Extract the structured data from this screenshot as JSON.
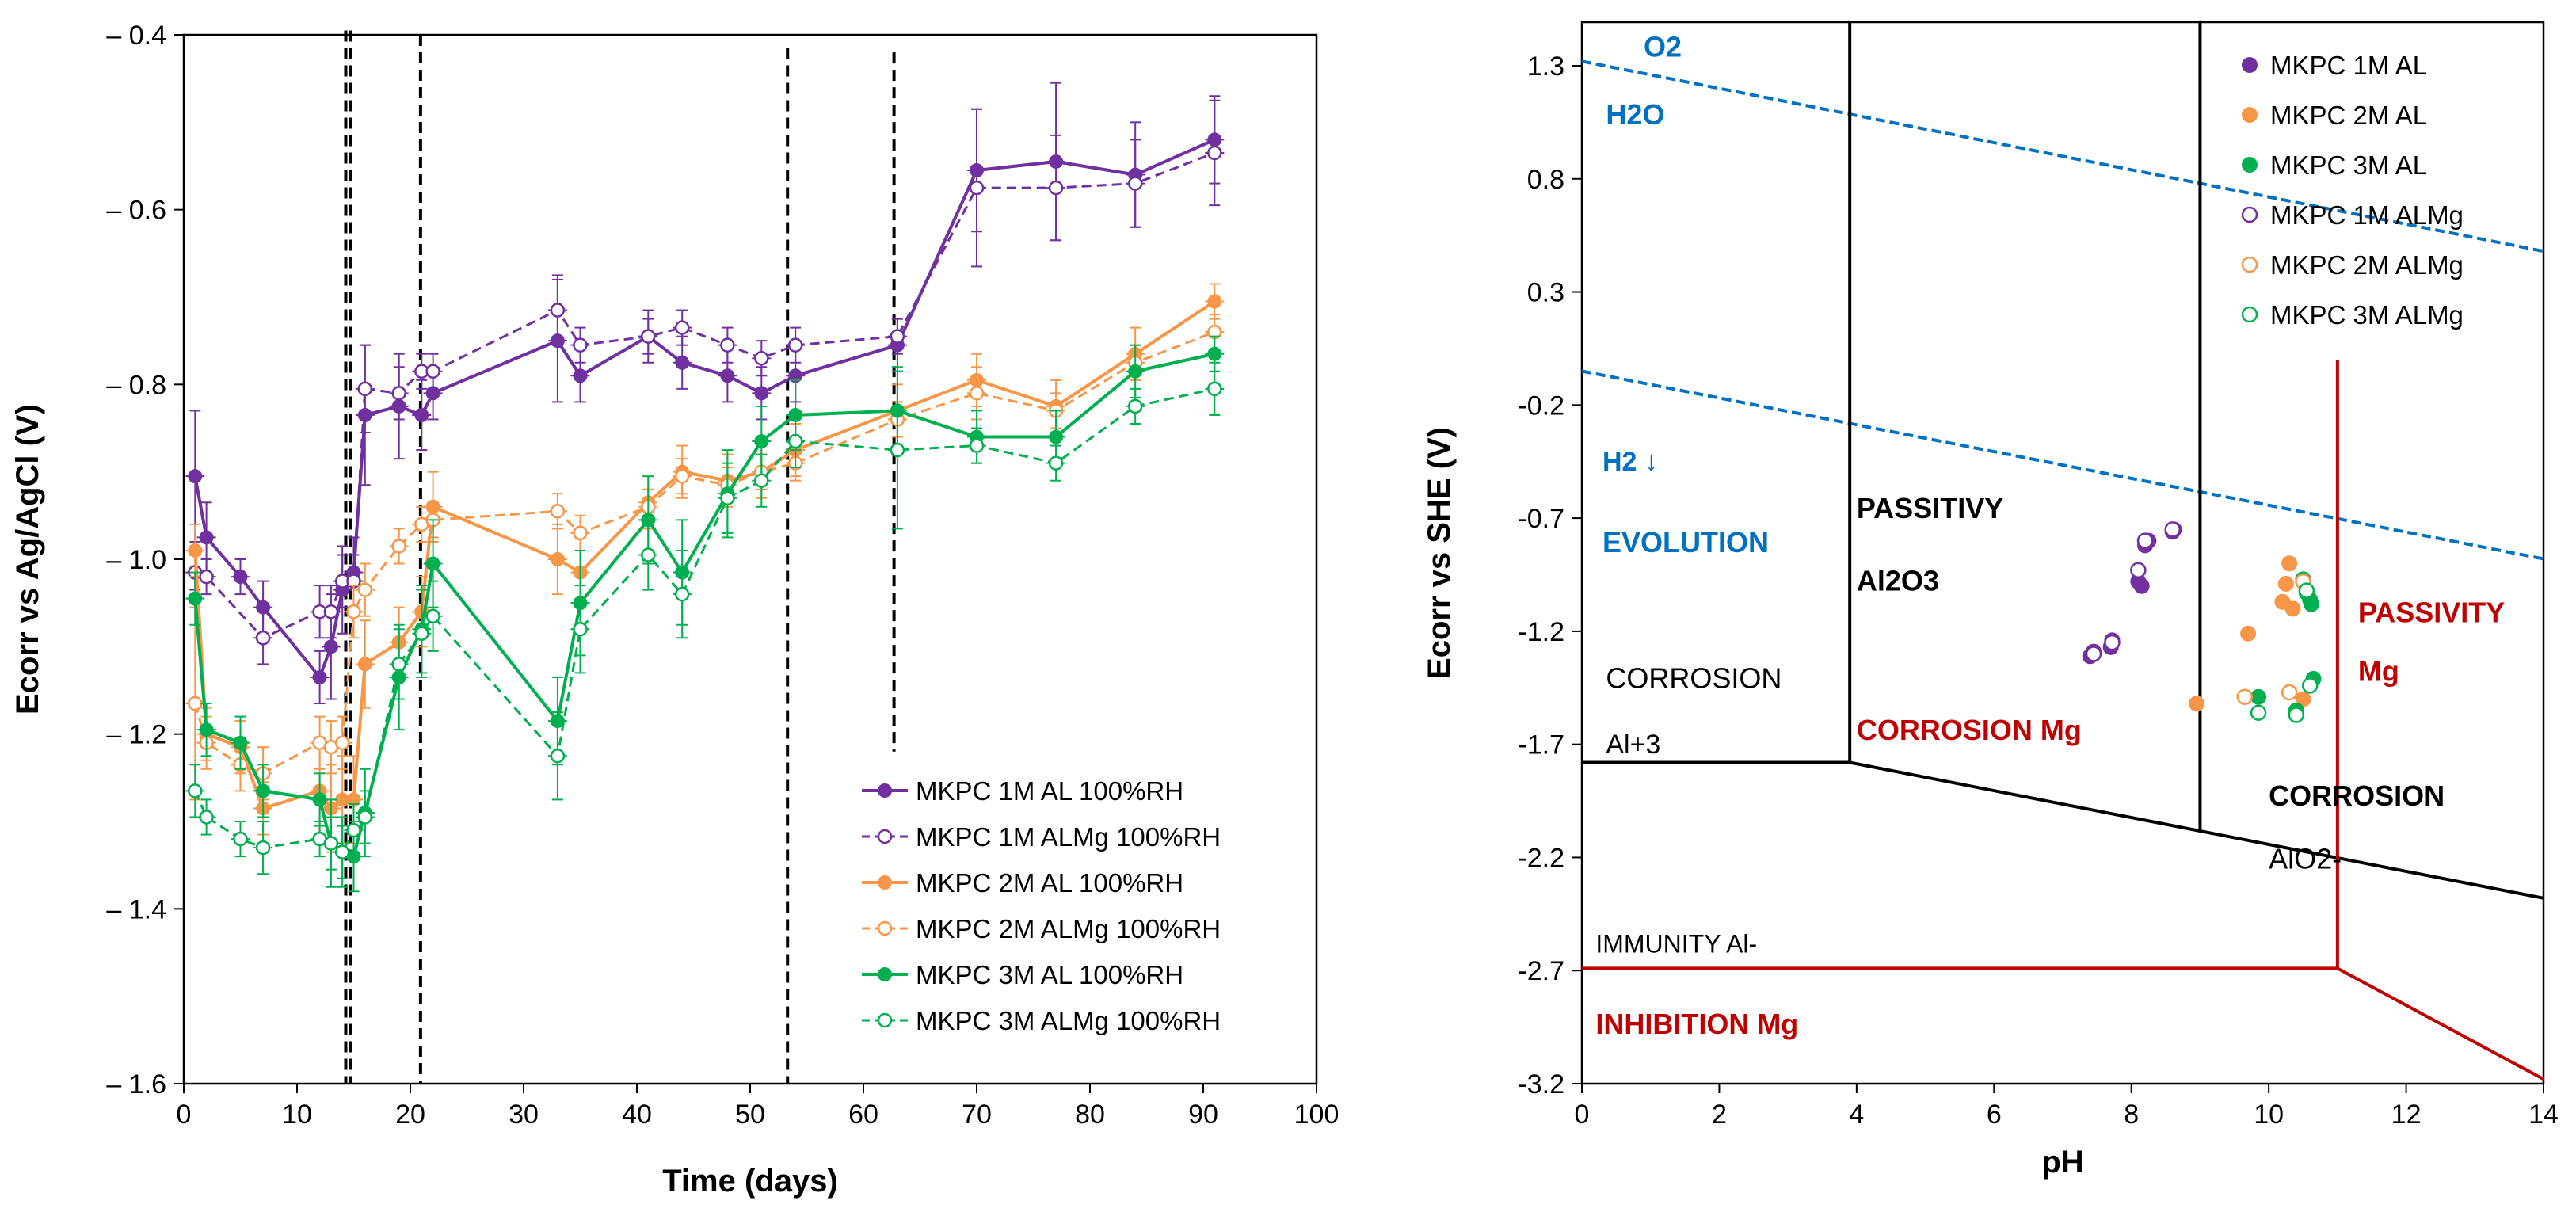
{
  "chart_data": [
    {
      "type": "line",
      "title": "",
      "xlabel": "Time (days)",
      "ylabel": "Ecorr vs Ag/AgCl (V)",
      "xlim": [
        0,
        100
      ],
      "ylim": [
        -1.6,
        -0.4
      ],
      "x_ticks": [
        0,
        10,
        20,
        30,
        40,
        50,
        60,
        70,
        80,
        90,
        100
      ],
      "x_tick_labels": [
        "0",
        "10",
        "20",
        "30",
        "40",
        "50",
        "60",
        "70",
        "80",
        "90",
        "100"
      ],
      "y_ticks": [
        -0.4,
        -0.6,
        -0.8,
        -1.0,
        -1.2,
        -1.4,
        -1.6
      ],
      "y_tick_labels": [
        "– 0.4",
        "– 0.6",
        "– 0.8",
        "– 1.0",
        "– 1.2",
        "– 1.4",
        "– 1.6"
      ],
      "vertical_markers_days": [
        14.7,
        14.3,
        20.9,
        53.3,
        62.7
      ],
      "legend_position": "bottom-right",
      "series": [
        {
          "name": "MKPC 1M AL 100%RH",
          "color": "#7030a0",
          "marker": "filled",
          "dash": false,
          "x": [
            1,
            2,
            5,
            7,
            12,
            13,
            14,
            15,
            16,
            19,
            21,
            22,
            33,
            35,
            41,
            44,
            48,
            51,
            54,
            63,
            70,
            77,
            84,
            91
          ],
          "y": [
            -0.905,
            -0.975,
            -1.02,
            -1.055,
            -1.135,
            -1.1,
            -1.035,
            -1.015,
            -0.835,
            -0.825,
            -0.835,
            -0.81,
            -0.75,
            -0.79,
            -0.745,
            -0.775,
            -0.79,
            -0.81,
            -0.79,
            -0.755,
            -0.555,
            -0.545,
            -0.56,
            -0.52
          ],
          "err": [
            0.075,
            0.04,
            0.02,
            0.03,
            0.03,
            0.06,
            0.05,
            0.04,
            0.08,
            0.06,
            0.04,
            0.03,
            0.07,
            0.03,
            0.03,
            0.03,
            0.03,
            0.03,
            0.03,
            0.03,
            0.07,
            0.09,
            0.06,
            0.05
          ]
        },
        {
          "name": "MKPC 1M ALMg 100%RH",
          "color": "#7030a0",
          "marker": "open",
          "dash": true,
          "x": [
            1,
            2,
            7,
            12,
            13,
            14,
            15,
            16,
            19,
            21,
            22,
            33,
            35,
            41,
            44,
            48,
            51,
            54,
            63,
            70,
            77,
            84,
            91
          ],
          "y": [
            -1.015,
            -1.02,
            -1.09,
            -1.06,
            -1.06,
            -1.025,
            -1.025,
            -0.805,
            -0.81,
            -0.785,
            -0.785,
            -0.715,
            -0.755,
            -0.745,
            -0.735,
            -0.755,
            -0.77,
            -0.755,
            -0.745,
            -0.575,
            -0.575,
            -0.57,
            -0.535
          ],
          "err": [
            0.02,
            0.02,
            0.03,
            0.03,
            0.03,
            0.03,
            0.03,
            0.05,
            0.03,
            0.02,
            0.02,
            0.04,
            0.02,
            0.02,
            0.02,
            0.02,
            0.02,
            0.02,
            0.02,
            0.09,
            0.06,
            0.05,
            0.06
          ]
        },
        {
          "name": "MKPC 2M AL 100%RH",
          "color": "#f79646",
          "marker": "filled",
          "dash": false,
          "x": [
            1,
            2,
            5,
            7,
            12,
            13,
            14,
            15,
            16,
            19,
            21,
            22,
            33,
            35,
            41,
            44,
            48,
            51,
            54,
            63,
            70,
            77,
            84,
            91
          ],
          "y": [
            -0.99,
            -1.2,
            -1.215,
            -1.285,
            -1.265,
            -1.285,
            -1.275,
            -1.275,
            -1.12,
            -1.095,
            -1.06,
            -0.94,
            -1.0,
            -1.015,
            -0.935,
            -0.9,
            -0.91,
            -0.9,
            -0.875,
            -0.83,
            -0.795,
            -0.825,
            -0.765,
            -0.705
          ],
          "err": [
            0.03,
            0.03,
            0.03,
            0.03,
            0.05,
            0.05,
            0.05,
            0.05,
            0.05,
            0.04,
            0.04,
            0.04,
            0.04,
            0.04,
            0.03,
            0.03,
            0.03,
            0.03,
            0.03,
            0.03,
            0.03,
            0.03,
            0.03,
            0.02
          ]
        },
        {
          "name": "MKPC 2M ALMg 100%RH",
          "color": "#f79646",
          "marker": "open",
          "dash": true,
          "x": [
            1,
            2,
            5,
            7,
            12,
            13,
            14,
            15,
            16,
            19,
            21,
            22,
            33,
            35,
            41,
            44,
            48,
            51,
            54,
            63,
            70,
            77,
            84,
            91
          ],
          "y": [
            -1.165,
            -1.21,
            -1.235,
            -1.245,
            -1.21,
            -1.215,
            -1.21,
            -1.06,
            -1.035,
            -0.985,
            -0.96,
            -0.955,
            -0.945,
            -0.97,
            -0.94,
            -0.905,
            -0.915,
            -0.9,
            -0.89,
            -0.84,
            -0.81,
            -0.83,
            -0.775,
            -0.74
          ],
          "err": [
            0.11,
            0.03,
            0.03,
            0.03,
            0.03,
            0.03,
            0.03,
            0.03,
            0.03,
            0.02,
            0.02,
            0.02,
            0.02,
            0.02,
            0.02,
            0.02,
            0.02,
            0.02,
            0.02,
            0.02,
            0.03,
            0.02,
            0.02,
            0.02
          ]
        },
        {
          "name": "MKPC 3M AL 100%RH",
          "color": "#00b050",
          "marker": "filled",
          "dash": false,
          "x": [
            1,
            2,
            5,
            7,
            12,
            13,
            14,
            15,
            16,
            19,
            21,
            22,
            33,
            35,
            41,
            44,
            48,
            51,
            54,
            63,
            70,
            77,
            84,
            91
          ],
          "y": [
            -1.045,
            -1.195,
            -1.21,
            -1.265,
            -1.275,
            -1.325,
            -1.335,
            -1.34,
            -1.29,
            -1.135,
            -1.08,
            -1.005,
            -1.185,
            -1.05,
            -0.955,
            -1.015,
            -0.925,
            -0.865,
            -0.835,
            -0.83,
            -0.86,
            -0.86,
            -0.785,
            -0.765
          ],
          "err": [
            0.03,
            0.03,
            0.03,
            0.03,
            0.03,
            0.05,
            0.04,
            0.04,
            0.05,
            0.06,
            0.05,
            0.05,
            0.05,
            0.06,
            0.05,
            0.06,
            0.05,
            0.04,
            0.04,
            0.05,
            0.03,
            0.03,
            0.03,
            0.02
          ]
        },
        {
          "name": "MKPC 3M ALMg 100%RH",
          "color": "#00b050",
          "marker": "open",
          "dash": true,
          "x": [
            1,
            2,
            5,
            7,
            12,
            13,
            14,
            15,
            16,
            19,
            21,
            22,
            33,
            35,
            41,
            44,
            48,
            51,
            54,
            63,
            70,
            77,
            84,
            91
          ],
          "y": [
            -1.265,
            -1.295,
            -1.32,
            -1.33,
            -1.32,
            -1.325,
            -1.335,
            -1.31,
            -1.295,
            -1.12,
            -1.085,
            -1.065,
            -1.225,
            -1.08,
            -0.995,
            -1.04,
            -0.93,
            -0.91,
            -0.865,
            -0.875,
            -0.87,
            -0.89,
            -0.825,
            -0.805
          ],
          "err": [
            0.03,
            0.02,
            0.02,
            0.03,
            0.02,
            0.03,
            0.03,
            0.03,
            0.03,
            0.04,
            0.05,
            0.04,
            0.05,
            0.05,
            0.04,
            0.05,
            0.04,
            0.03,
            0.03,
            0.09,
            0.02,
            0.02,
            0.02,
            0.03
          ]
        }
      ]
    },
    {
      "type": "scatter",
      "title": "",
      "xlabel": "pH",
      "ylabel": "Ecorr vs SHE (V)",
      "xlim": [
        0,
        14
      ],
      "ylim": [
        -3.2,
        1.5
      ],
      "x_ticks": [
        0,
        2,
        4,
        6,
        8,
        10,
        12,
        14
      ],
      "x_tick_labels": [
        "0",
        "2",
        "4",
        "6",
        "8",
        "10",
        "12",
        "14"
      ],
      "y_ticks": [
        1.3,
        0.8,
        0.3,
        -0.2,
        -0.7,
        -1.2,
        -1.7,
        -2.2,
        -2.7,
        -3.2
      ],
      "y_tick_labels": [
        "1.3",
        "0.8",
        "0.3",
        "-0.2",
        "-0.7",
        "-1.2",
        "-1.7",
        "-2.2",
        "-2.7",
        "-3.2"
      ],
      "legend_position": "top-right",
      "boundary_lines": [
        {
          "name": "O2/H2O line",
          "color": "#0070c0",
          "dash": true,
          "points": [
            [
              0,
              1.32
            ],
            [
              14,
              0.48
            ]
          ]
        },
        {
          "name": "H2 evolution line",
          "color": "#0070c0",
          "dash": true,
          "points": [
            [
              0,
              -0.05
            ],
            [
              14,
              -0.88
            ]
          ]
        },
        {
          "name": "Al corrosion boundary pH 3.9",
          "color": "#000000",
          "dash": false,
          "points": [
            [
              3.9,
              1.5
            ],
            [
              3.9,
              -1.78
            ]
          ]
        },
        {
          "name": "Al corrosion boundary pH 9",
          "color": "#000000",
          "dash": false,
          "points": [
            [
              9,
              1.5
            ],
            [
              9,
              -2.08
            ]
          ]
        },
        {
          "name": "Al immunity line",
          "color": "#000000",
          "dash": false,
          "points": [
            [
              0,
              -1.78
            ],
            [
              3.9,
              -1.78
            ],
            [
              14,
              -2.38
            ]
          ]
        },
        {
          "name": "Mg passivity boundary",
          "color": "#c00000",
          "dash": false,
          "points": [
            [
              11,
              0.0
            ],
            [
              11,
              -2.69
            ]
          ]
        },
        {
          "name": "Mg inhibition line",
          "color": "#c00000",
          "dash": false,
          "points": [
            [
              0,
              -2.69
            ],
            [
              11,
              -2.69
            ],
            [
              14,
              -3.18
            ]
          ]
        }
      ],
      "region_labels": [
        {
          "lines": [
            "O",
            "2"
          ],
          "text": "O2",
          "color": "#0070c0"
        },
        {
          "text": "H2O",
          "color": "#0070c0"
        },
        {
          "text": "H2 ↓",
          "color": "#0070c0"
        },
        {
          "text": "EVOLUTION",
          "color": "#0070c0"
        },
        {
          "text": "PASSITIVY",
          "color": "#000000"
        },
        {
          "text": "Al2O3",
          "color": "#000000"
        },
        {
          "text": "CORROSION",
          "color": "#000000"
        },
        {
          "text": "Al+3",
          "color": "#000000"
        },
        {
          "text": "CORROSION Mg",
          "color": "#c00000"
        },
        {
          "text": "PASSIVITY",
          "color": "#c00000"
        },
        {
          "text": "Mg",
          "color": "#c00000"
        },
        {
          "text": "CORROSION",
          "color": "#000000"
        },
        {
          "text": "AlO2-",
          "color": "#000000"
        },
        {
          "text": "IMMUNITY Al-",
          "color": "#000000"
        },
        {
          "text": "INHIBITION Mg",
          "color": "#c00000"
        }
      ],
      "series": [
        {
          "name": "MKPC 1M AL",
          "color": "#7030a0",
          "marker": "filled",
          "points": [
            [
              7.4,
              -1.31
            ],
            [
              7.45,
              -1.29
            ],
            [
              7.7,
              -1.27
            ],
            [
              7.72,
              -1.24
            ],
            [
              8.1,
              -0.98
            ],
            [
              8.15,
              -1.0
            ],
            [
              8.2,
              -0.82
            ],
            [
              8.25,
              -0.8
            ],
            [
              8.6,
              -0.76
            ],
            [
              8.62,
              -0.75
            ]
          ]
        },
        {
          "name": "MKPC 2M AL",
          "color": "#f79646",
          "marker": "filled",
          "points": [
            [
              8.95,
              -1.52
            ],
            [
              9.7,
              -1.21
            ],
            [
              10.2,
              -1.07
            ],
            [
              10.25,
              -0.99
            ],
            [
              10.3,
              -0.9
            ],
            [
              10.35,
              -1.1
            ],
            [
              10.5,
              -1.5
            ]
          ]
        },
        {
          "name": "MKPC 3M AL",
          "color": "#00b050",
          "marker": "filled",
          "points": [
            [
              9.85,
              -1.49
            ],
            [
              10.4,
              -1.55
            ],
            [
              10.5,
              -0.97
            ],
            [
              10.55,
              -1.03
            ],
            [
              10.6,
              -1.06
            ],
            [
              10.62,
              -1.08
            ],
            [
              10.65,
              -1.41
            ]
          ]
        },
        {
          "name": "MKPC 1M ALMg",
          "color": "#7030a0",
          "marker": "open",
          "points": [
            [
              7.45,
              -1.3
            ],
            [
              7.72,
              -1.25
            ],
            [
              8.1,
              -0.93
            ],
            [
              8.2,
              -0.8
            ],
            [
              8.6,
              -0.75
            ]
          ]
        },
        {
          "name": "MKPC 2M ALMg",
          "color": "#f79646",
          "marker": "open",
          "points": [
            [
              9.65,
              -1.49
            ],
            [
              10.3,
              -1.47
            ],
            [
              10.5,
              -0.98
            ]
          ]
        },
        {
          "name": "MKPC 3M ALMg",
          "color": "#00b050",
          "marker": "open",
          "points": [
            [
              9.85,
              -1.56
            ],
            [
              10.4,
              -1.57
            ],
            [
              10.55,
              -1.02
            ],
            [
              10.6,
              -1.44
            ]
          ]
        }
      ]
    }
  ]
}
